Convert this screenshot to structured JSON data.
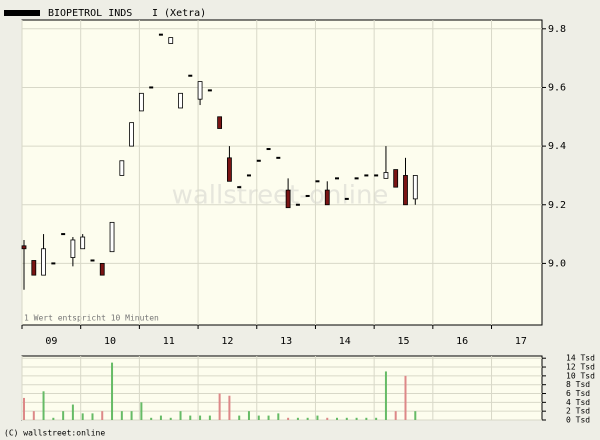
{
  "chart_data": {
    "type": "candlestick",
    "title": "BIOPETROL INDS",
    "subtitle": "I (Xetra)",
    "annotation": "1 Wert entspricht 10 Minuten",
    "watermark": "wallstreet-online",
    "footer": "(C) wallstreet:online",
    "x": [
      9,
      9.167,
      9.333,
      9.5,
      9.667,
      9.833,
      10,
      10.167,
      10.333,
      10.5,
      10.667,
      10.833,
      11,
      11.167,
      11.333,
      11.5,
      11.667,
      11.833,
      12,
      12.167,
      12.333,
      12.5,
      12.667,
      12.833,
      13,
      13.167,
      13.333,
      13.5,
      13.667,
      13.833,
      14,
      14.167,
      14.333,
      14.5,
      14.667,
      14.833,
      15,
      15.167,
      15.333,
      15.5,
      15.667
    ],
    "open": [
      9.06,
      9.01,
      8.96,
      9.0,
      9.1,
      9.02,
      9.05,
      9.01,
      9.0,
      9.04,
      9.3,
      9.4,
      9.52,
      9.6,
      9.78,
      9.75,
      9.53,
      9.64,
      9.56,
      9.59,
      9.5,
      9.36,
      9.26,
      9.3,
      9.35,
      9.39,
      9.36,
      9.25,
      9.2,
      9.23,
      9.28,
      9.25,
      9.29,
      9.22,
      9.29,
      9.3,
      9.3,
      9.29,
      9.32,
      9.3,
      9.22
    ],
    "high": [
      9.08,
      9.01,
      9.1,
      9.0,
      9.1,
      9.09,
      9.1,
      9.01,
      9.0,
      9.14,
      9.35,
      9.48,
      9.58,
      9.6,
      9.78,
      9.77,
      9.58,
      9.64,
      9.62,
      9.59,
      9.5,
      9.4,
      9.26,
      9.3,
      9.35,
      9.39,
      9.36,
      9.29,
      9.2,
      9.23,
      9.28,
      9.28,
      9.29,
      9.22,
      9.29,
      9.3,
      9.3,
      9.4,
      9.32,
      9.36,
      9.3
    ],
    "low": [
      8.91,
      8.96,
      8.96,
      9.0,
      9.1,
      8.99,
      9.05,
      9.01,
      8.96,
      9.04,
      9.3,
      9.4,
      9.52,
      9.6,
      9.78,
      9.75,
      9.53,
      9.64,
      9.54,
      9.59,
      9.46,
      9.28,
      9.26,
      9.3,
      9.35,
      9.39,
      9.36,
      9.19,
      9.2,
      9.23,
      9.28,
      9.2,
      9.29,
      9.22,
      9.29,
      9.3,
      9.3,
      9.29,
      9.26,
      9.2,
      9.2
    ],
    "close": [
      9.05,
      8.96,
      9.05,
      9.0,
      9.1,
      9.08,
      9.09,
      9.01,
      8.96,
      9.14,
      9.35,
      9.48,
      9.58,
      9.6,
      9.78,
      9.77,
      9.58,
      9.64,
      9.62,
      9.59,
      9.46,
      9.28,
      9.26,
      9.3,
      9.35,
      9.39,
      9.36,
      9.19,
      9.2,
      9.23,
      9.28,
      9.2,
      9.29,
      9.22,
      9.29,
      9.3,
      9.3,
      9.31,
      9.26,
      9.2,
      9.3
    ],
    "volume": [
      5,
      2,
      6.5,
      0.5,
      2,
      3.5,
      1.5,
      1.5,
      2,
      13,
      2,
      2,
      4,
      0.5,
      1,
      0.5,
      2,
      1,
      1,
      1,
      6,
      5.5,
      1,
      2,
      1,
      1,
      1.5,
      0.5,
      0.5,
      0.5,
      1,
      0.5,
      0.5,
      0.5,
      0.5,
      0.5,
      0.5,
      11,
      2,
      10,
      2
    ],
    "up_color": "#ffffff",
    "down_color": "#7a1414",
    "flat_color": "#000000",
    "volume_up_color": "#66bb66",
    "volume_down_color": "#dd8888",
    "volume_flat_color": "#66bb66",
    "xlim": [
      9,
      17.86
    ],
    "xticks": [
      {
        "value": 9,
        "label": "09"
      },
      {
        "value": 10,
        "label": "10"
      },
      {
        "value": 11,
        "label": "11"
      },
      {
        "value": 12,
        "label": "12"
      },
      {
        "value": 13,
        "label": "13"
      },
      {
        "value": 14,
        "label": "14"
      },
      {
        "value": 15,
        "label": "15"
      },
      {
        "value": 16,
        "label": "16"
      },
      {
        "value": 17,
        "label": "17"
      }
    ],
    "ylim": [
      8.79,
      9.83
    ],
    "yticks": [
      {
        "value": 9,
        "label": "9.0"
      },
      9.2,
      9.4,
      9.6,
      9.8
    ],
    "y2lim": [
      0,
      14.5
    ],
    "y2ticks": [
      {
        "value": 0,
        "label": "0 Tsd"
      },
      {
        "value": 2,
        "label": "2 Tsd"
      },
      {
        "value": 4,
        "label": "4 Tsd"
      },
      {
        "value": 6,
        "label": "6 Tsd"
      },
      {
        "value": 8,
        "label": "8 Tsd"
      },
      {
        "value": 10,
        "label": "10 Tsd"
      },
      {
        "value": 12,
        "label": "12 Tsd"
      },
      {
        "value": 14,
        "label": "14 Tsd"
      }
    ],
    "grid": true
  }
}
